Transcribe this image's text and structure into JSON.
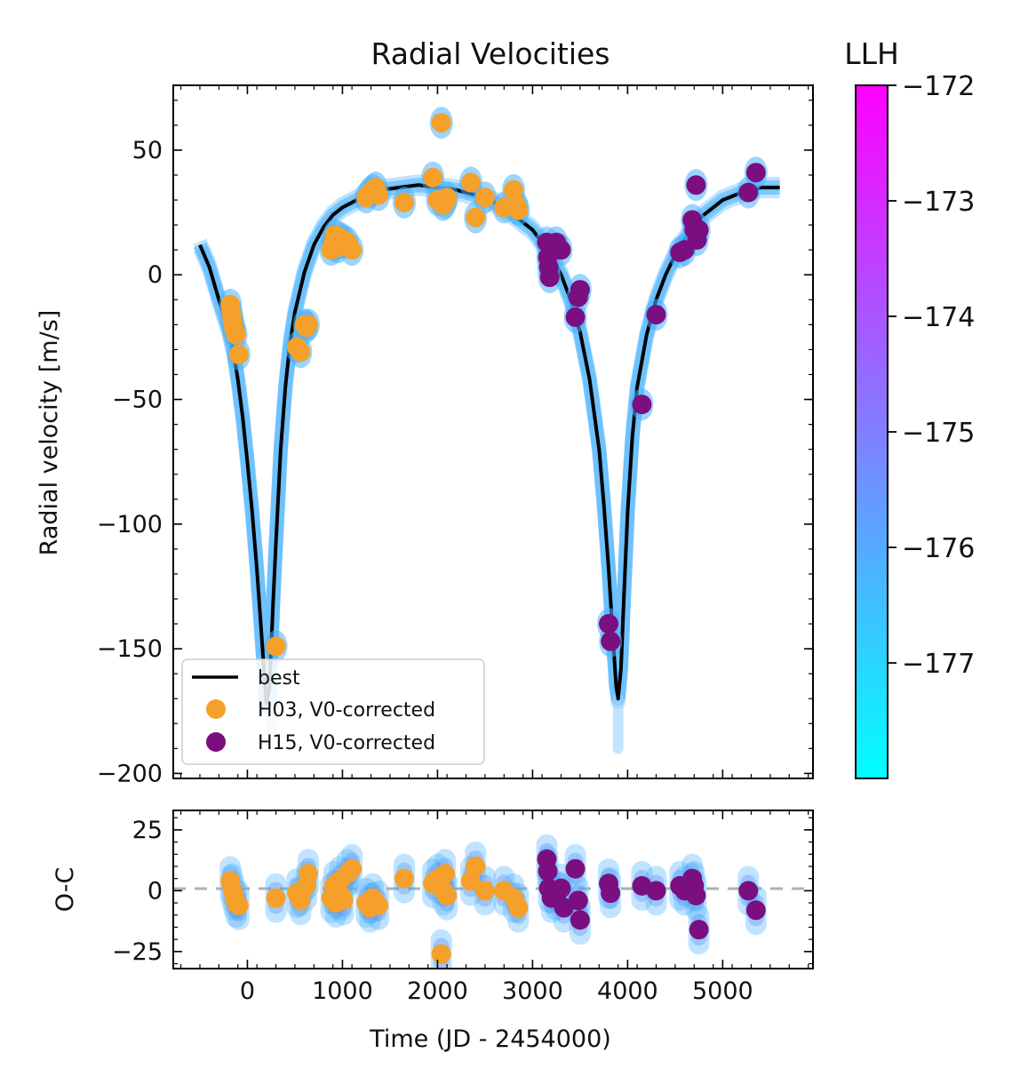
{
  "chart_data": [
    {
      "panel": "radial velocity",
      "type": "scatter",
      "title": "Radial Velocities",
      "xlabel": "",
      "ylabel": "Radial velocity [m/s]",
      "xlim": [
        -780,
        5950
      ],
      "ylim": [
        -202,
        76
      ],
      "xticks": [
        0,
        1000,
        2000,
        3000,
        4000,
        5000
      ],
      "yticks": [
        50,
        0,
        -50,
        -100,
        -150,
        -200
      ],
      "ytick_labels": [
        "50",
        "0",
        "−50",
        "−100",
        "−150",
        "−200"
      ],
      "grid": false,
      "legend_position": "lower-left",
      "legend": [
        {
          "label": "best",
          "kind": "line",
          "color": "#000000"
        },
        {
          "label": "H03, V0-corrected",
          "kind": "marker",
          "color": "#f5a02a"
        },
        {
          "label": "H15, V0-corrected",
          "kind": "marker",
          "color": "#7b0f80"
        }
      ],
      "model_curve": {
        "name": "best",
        "x": [
          -500,
          -400,
          -300,
          -200,
          -150,
          -100,
          -50,
          0,
          50,
          100,
          150,
          200,
          230,
          250,
          270,
          300,
          350,
          400,
          450,
          500,
          600,
          700,
          800,
          900,
          1000,
          1200,
          1400,
          1600,
          1800,
          2000,
          2200,
          2400,
          2600,
          2800,
          3000,
          3100,
          3200,
          3300,
          3400,
          3500,
          3600,
          3700,
          3750,
          3800,
          3850,
          3880,
          3900,
          3930,
          3960,
          4000,
          4050,
          4100,
          4200,
          4300,
          4400,
          4500,
          4600,
          4700,
          4800,
          5000,
          5200,
          5400,
          5600
        ],
        "y": [
          12,
          3,
          -10,
          -22,
          -30,
          -42,
          -57,
          -75,
          -95,
          -118,
          -145,
          -172,
          -166,
          -150,
          -132,
          -108,
          -70,
          -45,
          -27,
          -15,
          1,
          12,
          19,
          24,
          27,
          31,
          34,
          35,
          36,
          35,
          34,
          32,
          29,
          24,
          18,
          13,
          7,
          0,
          -10,
          -23,
          -42,
          -70,
          -92,
          -118,
          -148,
          -165,
          -170,
          -158,
          -130,
          -95,
          -65,
          -45,
          -24,
          -10,
          0,
          8,
          14,
          20,
          24,
          30,
          33,
          35,
          35
        ]
      },
      "series": [
        {
          "name": "H03, V0-corrected",
          "color": "#f5a02a",
          "x": [
            -180,
            -170,
            -160,
            -150,
            -140,
            -120,
            -90,
            520,
            560,
            600,
            620,
            640,
            880,
            900,
            910,
            920,
            930,
            950,
            970,
            990,
            1010,
            1050,
            1100,
            1250,
            1290,
            1320,
            1350,
            1380,
            1650,
            1950,
            2000,
            2040,
            2060,
            2080,
            2100,
            2350,
            2400,
            2500,
            2700,
            2800,
            2830,
            2850,
            300
          ],
          "y": [
            -12,
            -15,
            -18,
            -20,
            -22,
            -24,
            -32,
            -29,
            -31,
            -20,
            -21,
            -20,
            10,
            12,
            14,
            16,
            12,
            11,
            15,
            13,
            14,
            13,
            10,
            31,
            33,
            34,
            35,
            32,
            29,
            39,
            30,
            61,
            28,
            29,
            31,
            37,
            23,
            31,
            27,
            34,
            28,
            26,
            -149
          ]
        },
        {
          "name": "H15, V0-corrected",
          "color": "#7b0f80",
          "x": [
            3150,
            3160,
            3170,
            3180,
            3200,
            3250,
            3300,
            3450,
            3480,
            3500,
            3800,
            3820,
            4150,
            4300,
            4550,
            4600,
            4680,
            4700,
            4720,
            4750,
            4730,
            5270,
            5350
          ],
          "y": [
            13,
            7,
            3,
            -1,
            10,
            13,
            10,
            -17,
            -9,
            -6,
            -140,
            -147,
            -52,
            -16,
            9,
            10,
            22,
            18,
            36,
            18,
            14,
            33,
            41
          ]
        }
      ]
    },
    {
      "panel": "residuals",
      "type": "scatter",
      "title": "",
      "xlabel": "Time (JD - 2454000)",
      "ylabel": "O-C",
      "xlim": [
        -780,
        5950
      ],
      "ylim": [
        -32,
        33
      ],
      "xticks": [
        0,
        1000,
        2000,
        3000,
        4000,
        5000
      ],
      "yticks": [
        25,
        0,
        -25
      ],
      "ytick_labels": [
        "25",
        "0",
        "−25"
      ],
      "zero_line": "dashed gray",
      "series": [
        {
          "name": "H03, V0-corrected",
          "color": "#f5a02a",
          "x": [
            -180,
            -160,
            -140,
            -120,
            -90,
            300,
            520,
            560,
            620,
            640,
            880,
            910,
            930,
            970,
            990,
            1010,
            1050,
            1100,
            1250,
            1290,
            1320,
            1380,
            1650,
            1950,
            2000,
            2040,
            2060,
            2080,
            2100,
            2350,
            2400,
            2500,
            2700,
            2800,
            2850
          ],
          "y": [
            4,
            1,
            -2,
            -5,
            -6,
            -3,
            -1,
            -4,
            2,
            7,
            -3,
            2,
            -5,
            4,
            -2,
            -4,
            7,
            9,
            -5,
            -7,
            -3,
            -6,
            5,
            3,
            5,
            -26,
            0,
            7,
            -2,
            4,
            10,
            0,
            0,
            -3,
            -7
          ]
        },
        {
          "name": "H15, V0-corrected",
          "color": "#7b0f80",
          "x": [
            3150,
            3160,
            3170,
            3200,
            3250,
            3300,
            3330,
            3450,
            3480,
            3500,
            3800,
            3820,
            4150,
            4300,
            4550,
            4600,
            4680,
            4700,
            4720,
            4750,
            5270,
            5350
          ],
          "y": [
            13,
            8,
            1,
            -3,
            -2,
            1,
            -7,
            9,
            -4,
            -12,
            3,
            -1,
            2,
            0,
            2,
            0,
            5,
            2,
            -2,
            -16,
            0,
            -8
          ]
        }
      ]
    },
    {
      "panel": "colorbar",
      "type": "heatmap",
      "title": "LLH",
      "range": [
        -178,
        -172
      ],
      "ticks": [
        -172,
        -173,
        -174,
        -175,
        -176,
        -177
      ],
      "tick_labels": [
        "−172",
        "−173",
        "−174",
        "−175",
        "−176",
        "−177"
      ],
      "colors": [
        "#00ffff",
        "#ff00ff"
      ]
    }
  ]
}
